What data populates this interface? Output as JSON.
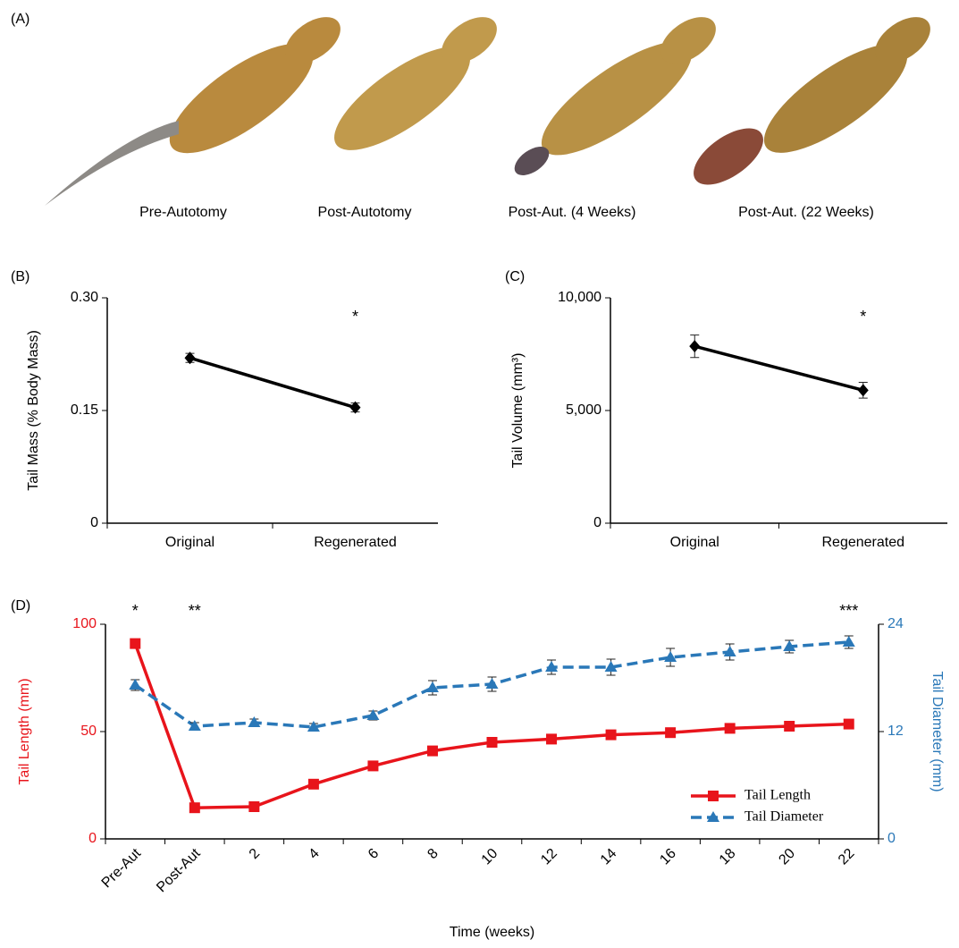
{
  "panel_a": {
    "label": "(A)",
    "captions": [
      "Pre-Autotomy",
      "Post-Autotomy",
      "Post-Aut. (4 Weeks)",
      "Post-Aut. (22 Weeks)"
    ]
  },
  "chart_data": [
    {
      "type": "line",
      "panel_label": "(B)",
      "ylabel": "Tail Mass (% Body Mass)",
      "categories": [
        "Original",
        "Regenerated"
      ],
      "series": [
        {
          "color": "#000000",
          "marker": "diamond",
          "dash": false,
          "values": [
            0.22,
            0.154
          ],
          "errors": [
            0.006,
            0.006
          ]
        }
      ],
      "annotations": [
        null,
        "*"
      ],
      "ylim": [
        0,
        0.3
      ],
      "yticks": [
        0,
        0.15,
        {
          "value": 0.3,
          "label": "0.30"
        }
      ]
    },
    {
      "type": "line",
      "panel_label": "(C)",
      "ylabel": "Tail Volume (mm³)",
      "categories": [
        "Original",
        "Regenerated"
      ],
      "series": [
        {
          "color": "#000000",
          "marker": "diamond",
          "dash": false,
          "values": [
            7850,
            5900
          ],
          "errors": [
            500,
            350
          ]
        }
      ],
      "annotations": [
        null,
        "*"
      ],
      "ylim": [
        0,
        10000
      ],
      "yticks": [
        0,
        {
          "value": 5000,
          "label": "5,000"
        },
        {
          "value": 10000,
          "label": "10,000"
        }
      ]
    },
    {
      "type": "line",
      "panel_label": "(D)",
      "xlabel": "Time (weeks)",
      "ylabel": "Tail Length (mm)",
      "y2label": "Tail Diameter (mm)",
      "categories": [
        "Pre-Aut",
        "Post-Aut",
        "2",
        "4",
        "6",
        "8",
        "10",
        "12",
        "14",
        "16",
        "18",
        "20",
        "22"
      ],
      "series": [
        {
          "name": "Tail Length",
          "color": "#e8141b",
          "marker": "square",
          "dash": false,
          "values": [
            91,
            14.5,
            15,
            25.5,
            34,
            41,
            45,
            46.5,
            48.5,
            49.5,
            51.5,
            52.5,
            53.5
          ],
          "errors": [
            1.5,
            1,
            1,
            1,
            1.2,
            1.2,
            1.2,
            1.5,
            1.5,
            1.5,
            1.5,
            1.5,
            2
          ]
        },
        {
          "name": "Tail Diameter",
          "color": "#2a78b8",
          "marker": "triangle",
          "dash": true,
          "axis": "y2",
          "values": [
            17.2,
            12.6,
            13,
            12.5,
            13.8,
            16.9,
            17.3,
            19.2,
            19.2,
            20.3,
            20.9,
            21.5,
            22
          ],
          "errors": [
            0.6,
            0.4,
            0.4,
            0.4,
            0.5,
            0.8,
            0.8,
            0.8,
            0.9,
            1,
            0.9,
            0.7,
            0.7
          ]
        }
      ],
      "annotations": [
        "*",
        "**",
        null,
        null,
        null,
        null,
        null,
        null,
        null,
        null,
        null,
        null,
        "***"
      ],
      "ylim": [
        0,
        100
      ],
      "yticks": [
        0,
        50,
        100
      ],
      "y2lim": [
        0,
        24
      ],
      "y2ticks": [
        0,
        12,
        24
      ],
      "legend": "bottom-right"
    }
  ]
}
